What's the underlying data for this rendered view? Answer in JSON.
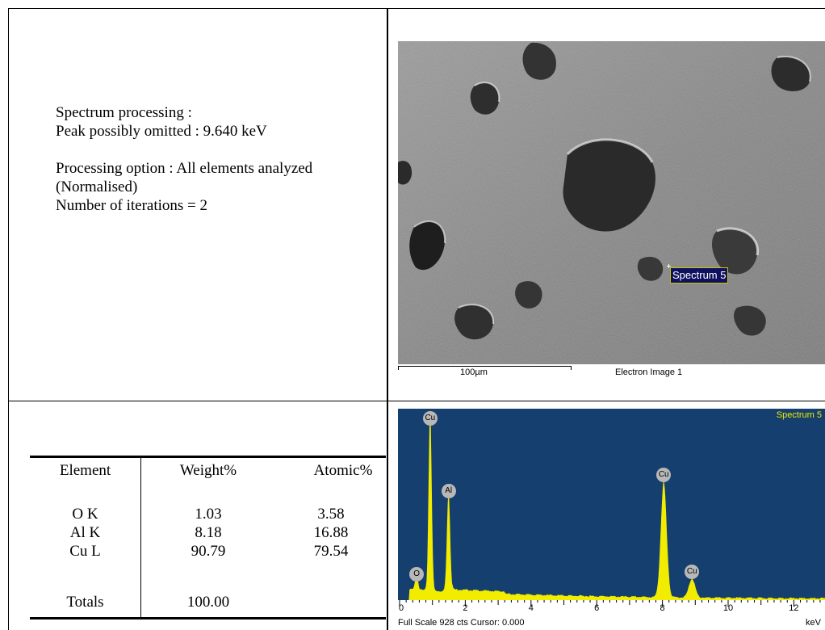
{
  "info": {
    "line1": "Spectrum processing :",
    "line2": "Peak possibly omitted : 9.640 keV",
    "line3": "Processing option : All elements analyzed",
    "line4": "(Normalised)",
    "line5": "Number of iterations = 2"
  },
  "electron_image": {
    "spectrum_label": "Spectrum 5",
    "scale_label": "100µm",
    "caption": "Electron Image 1"
  },
  "composition": {
    "headers": [
      "Element",
      "Weight%",
      "Atomic%"
    ],
    "rows": [
      {
        "element": "O K",
        "weight": "1.03",
        "atomic": "3.58"
      },
      {
        "element": "Al K",
        "weight": "8.18",
        "atomic": "16.88"
      },
      {
        "element": "Cu L",
        "weight": "90.79",
        "atomic": "79.54"
      }
    ],
    "totals_label": "Totals",
    "totals_weight": "100.00"
  },
  "chart_data": {
    "type": "area",
    "title": "Spectrum 5",
    "xlabel": "keV",
    "ylabel": "",
    "xlim": [
      0,
      14.5
    ],
    "ylim": [
      0,
      928
    ],
    "x_ticks": [
      "0",
      "2",
      "4",
      "6",
      "8",
      "10",
      "12"
    ],
    "footer": "Full Scale 928 cts Cursor: 0.000",
    "background_color": "#143f6e",
    "fill_color": "#f2ec00",
    "peaks": [
      {
        "label": "O",
        "energy": 0.52,
        "counts": 80
      },
      {
        "label": "Cu",
        "energy": 0.93,
        "counts": 928
      },
      {
        "label": "Al",
        "energy": 1.49,
        "counts": 500
      },
      {
        "label": "Cu",
        "energy": 8.04,
        "counts": 580
      },
      {
        "label": "Cu",
        "energy": 8.9,
        "counts": 95
      }
    ]
  }
}
